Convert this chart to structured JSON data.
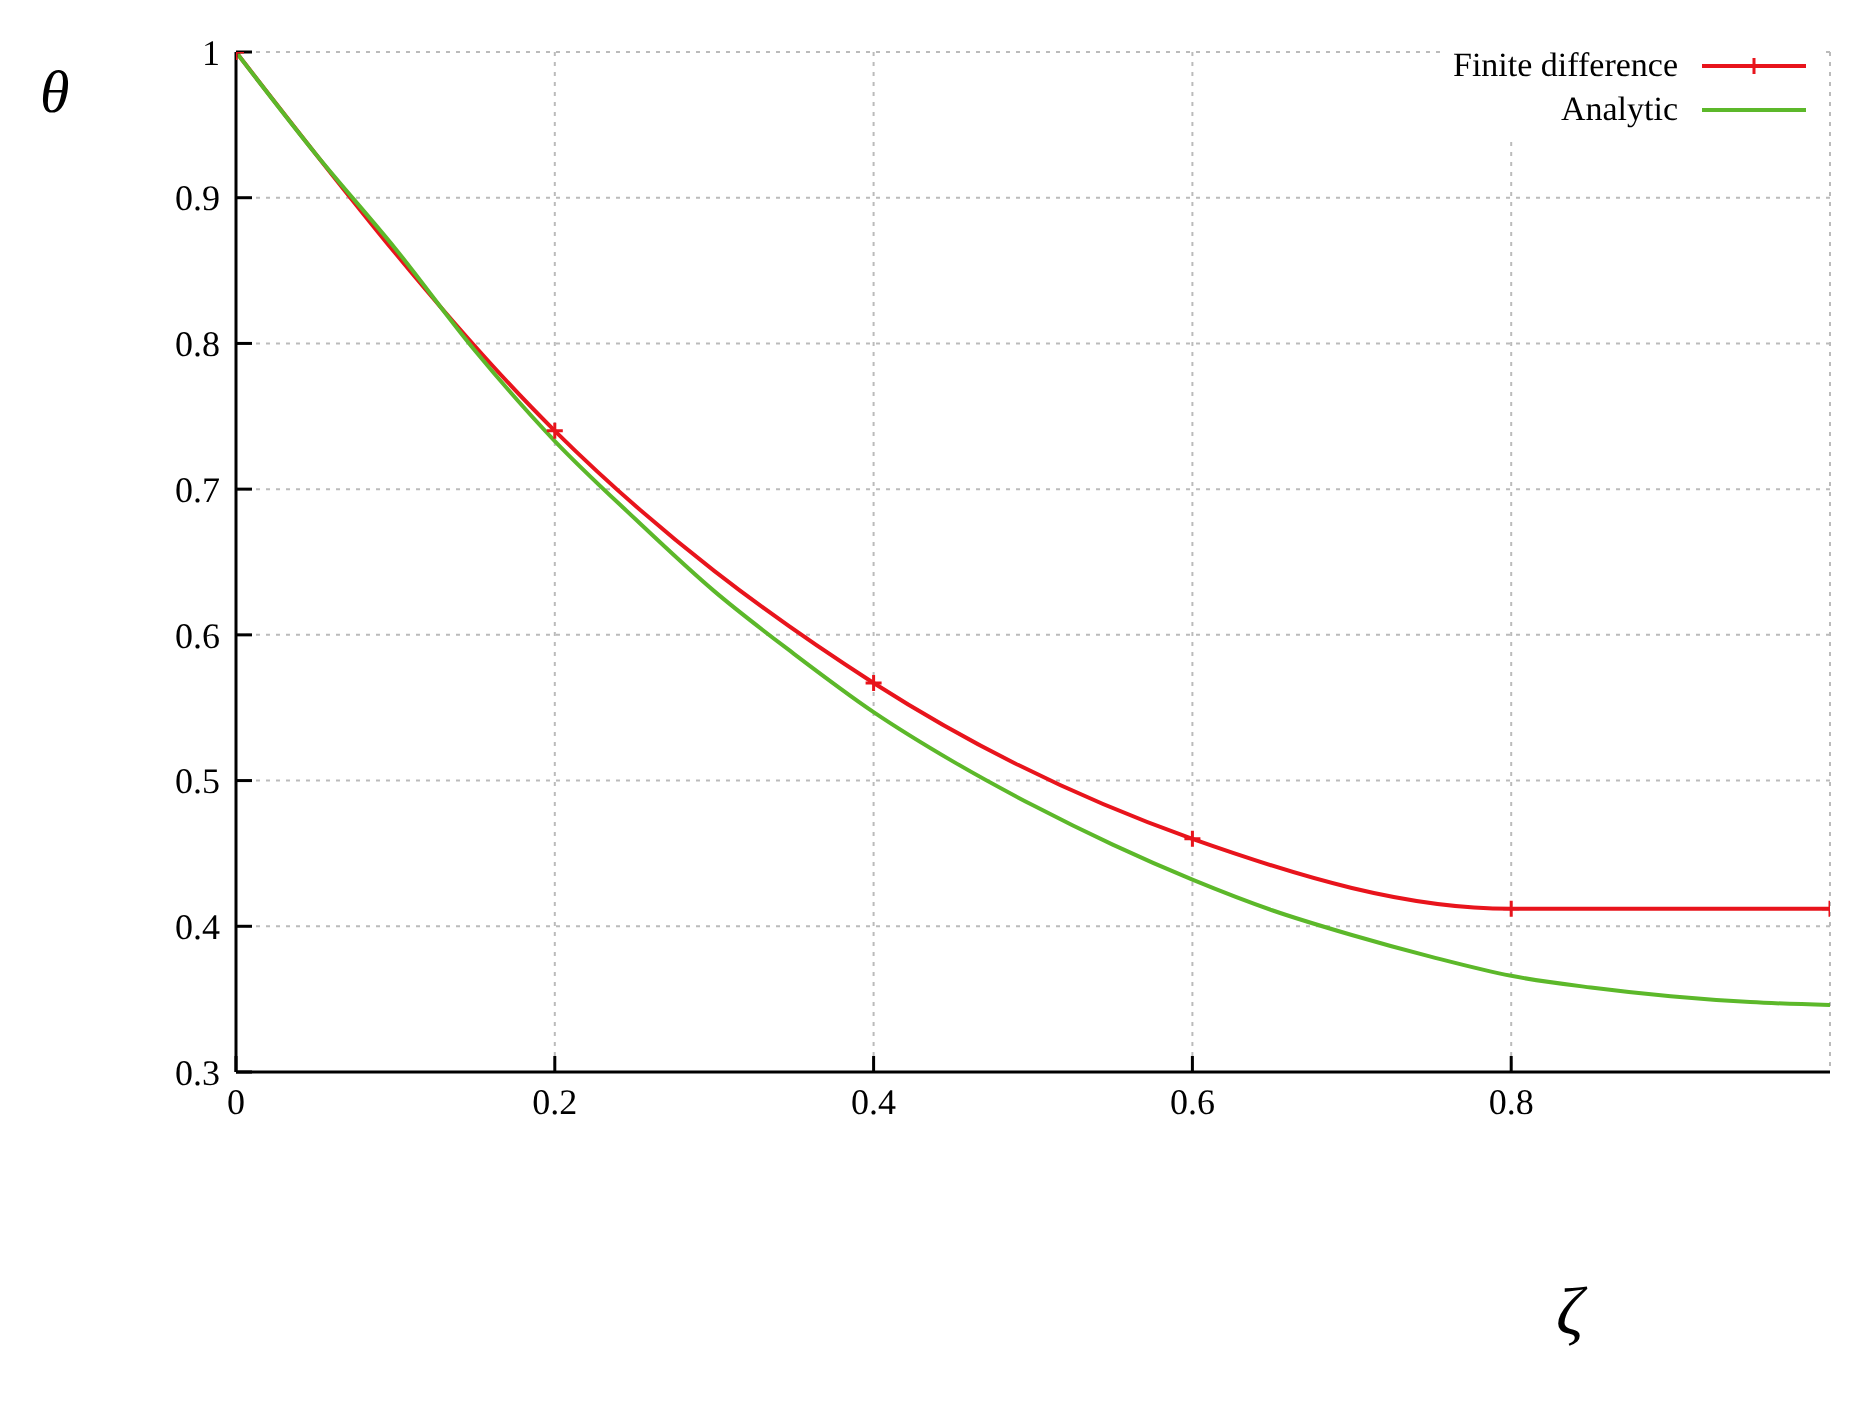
{
  "chart_data": {
    "type": "line",
    "xlabel": "ζ",
    "ylabel": "θ",
    "xlim": [
      0,
      1
    ],
    "ylim": [
      0.3,
      1
    ],
    "xticks": [
      0,
      0.2,
      0.4,
      0.6,
      0.8
    ],
    "yticks": [
      0.3,
      0.4,
      0.5,
      0.6,
      0.7,
      0.8,
      0.9,
      1
    ],
    "grid": true,
    "legend": "top right",
    "line_style": "solid",
    "series": [
      {
        "name": "Finite difference",
        "color": "#e8141c",
        "marker": "cross",
        "x": [
          0,
          0.2,
          0.4,
          0.6,
          0.8,
          1
        ],
        "values": [
          1,
          0.74,
          0.567,
          0.46,
          0.412,
          0.412
        ]
      },
      {
        "name": "Analytic",
        "color": "#5cb82a",
        "marker": "none",
        "x": [
          0,
          0.05,
          0.1,
          0.15,
          0.2,
          0.25,
          0.3,
          0.35,
          0.4,
          0.45,
          0.5,
          0.55,
          0.6,
          0.65,
          0.7,
          0.75,
          0.8,
          0.85,
          0.9,
          0.95,
          1
        ],
        "values": [
          1,
          0.93,
          0.865,
          0.795,
          0.733,
          0.68,
          0.63,
          0.587,
          0.547,
          0.513,
          0.483,
          0.456,
          0.432,
          0.411,
          0.394,
          0.379,
          0.366,
          0.358,
          0.352,
          0.348,
          0.346
        ]
      }
    ]
  }
}
